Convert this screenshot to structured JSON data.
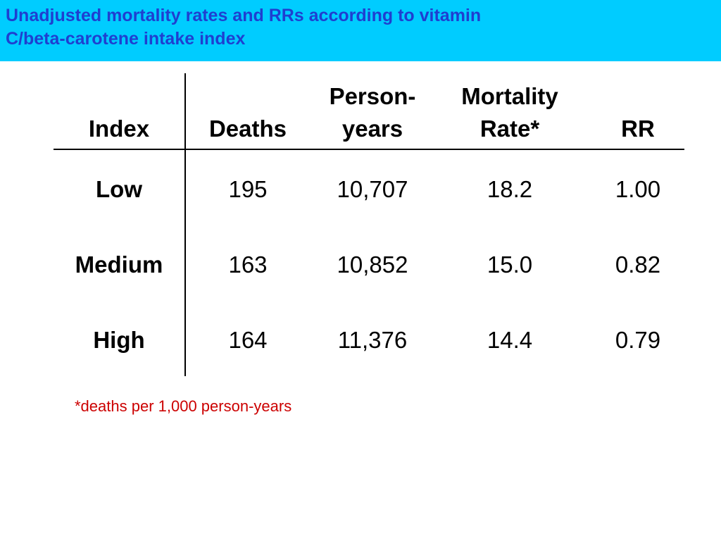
{
  "title": {
    "line1": "Unadjusted mortality rates and RRs according to vitamin",
    "line2": "C/beta-carotene intake index"
  },
  "table": {
    "headers": [
      {
        "line1": "",
        "line2": "Index"
      },
      {
        "line1": "",
        "line2": "Deaths"
      },
      {
        "line1": "Person-",
        "line2": "years"
      },
      {
        "line1": "Mortality",
        "line2": "Rate*"
      },
      {
        "line1": "",
        "line2": "RR"
      }
    ],
    "rows": [
      {
        "index": "Low",
        "deaths": "195",
        "person_years": "10,707",
        "mortality_rate": "18.2",
        "rr": "1.00"
      },
      {
        "index": "Medium",
        "deaths": "163",
        "person_years": "10,852",
        "mortality_rate": "15.0",
        "rr": "0.82"
      },
      {
        "index": "High",
        "deaths": "164",
        "person_years": "11,376",
        "mortality_rate": "14.4",
        "rr": "0.79"
      }
    ]
  },
  "footnote": "*deaths per 1,000 person-years",
  "colors": {
    "title_bar": "#00ccff",
    "title_text": "#1f3fd0",
    "footnote_text": "#cc0000"
  }
}
